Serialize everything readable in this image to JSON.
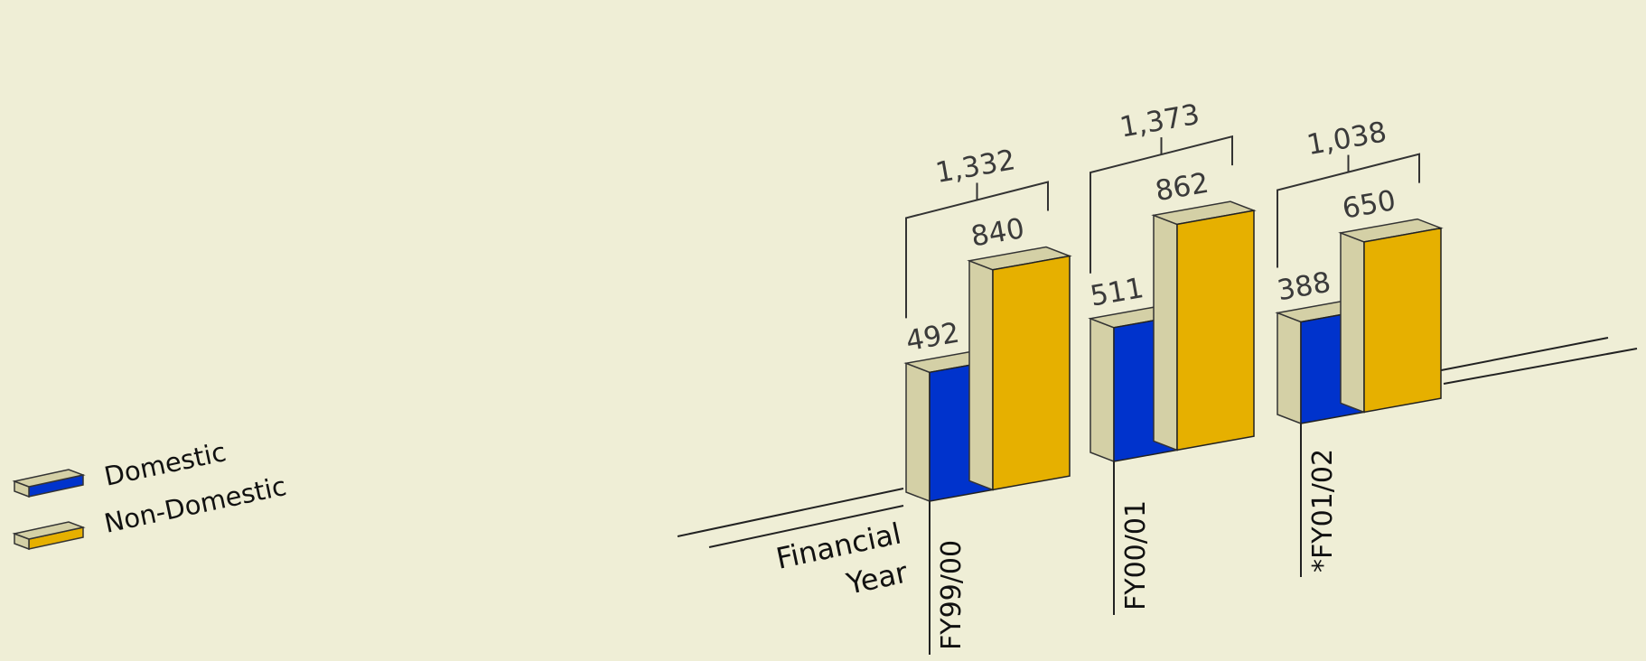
{
  "chart_data": {
    "type": "bar",
    "title": "",
    "xlabel": "Financial Year",
    "ylabel": "",
    "categories": [
      "FY99/00",
      "FY00/01",
      "*FY01/02"
    ],
    "series": [
      {
        "name": "Domestic",
        "values": [
          492,
          511,
          388
        ]
      },
      {
        "name": "Non-Domestic",
        "values": [
          840,
          862,
          650
        ]
      }
    ],
    "totals": [
      1332,
      1373,
      1038
    ],
    "value_labels": [
      "492",
      "511",
      "388"
    ],
    "value_labels_nd": [
      "840",
      "862",
      "650"
    ],
    "total_labels": [
      "1,332",
      "1,373",
      "1,038"
    ],
    "legend_position": "left",
    "grid": false,
    "colors": {
      "domestic": "#0033cc",
      "non_domestic": "#e6b000",
      "side": "#d4d0a6",
      "background": "#efeed6"
    }
  }
}
